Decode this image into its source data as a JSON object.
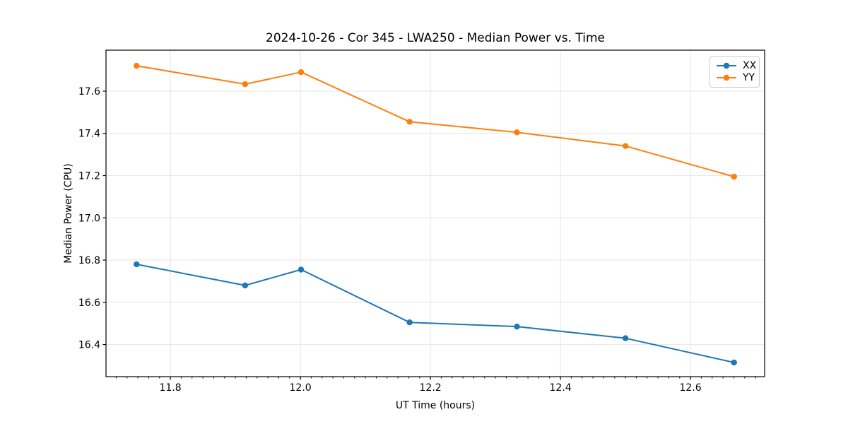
{
  "chart_data": {
    "type": "line",
    "title": "2024-10-26 - Cor 345 - LWA250 - Median Power vs. Time",
    "xlabel": "UT Time (hours)",
    "ylabel": "Median Power (CPU)",
    "xlim": [
      11.701,
      12.714
    ],
    "ylim": [
      16.248,
      17.794
    ],
    "grid": true,
    "legend_position": "upper right",
    "x": [
      11.748,
      11.915,
      12.001,
      12.168,
      12.333,
      12.5,
      12.667
    ],
    "series": [
      {
        "name": "XX",
        "color": "#1f77b4",
        "values": [
          16.78,
          16.68,
          16.755,
          16.505,
          16.485,
          16.43,
          16.315
        ]
      },
      {
        "name": "YY",
        "color": "#ff7f0e",
        "values": [
          17.72,
          17.633,
          17.69,
          17.455,
          17.405,
          17.34,
          17.195
        ]
      }
    ],
    "x_ticks": [
      {
        "value": 11.8,
        "label": "11.8"
      },
      {
        "value": 12.0,
        "label": "12.0"
      },
      {
        "value": 12.2,
        "label": "12.2"
      },
      {
        "value": 12.4,
        "label": "12.4"
      },
      {
        "value": 12.6,
        "label": "12.6"
      }
    ],
    "y_ticks": [
      {
        "value": 16.4,
        "label": "16.4"
      },
      {
        "value": 16.6,
        "label": "16.6"
      },
      {
        "value": 16.8,
        "label": "16.8"
      },
      {
        "value": 17.0,
        "label": "17.0"
      },
      {
        "value": 17.2,
        "label": "17.2"
      },
      {
        "value": 17.4,
        "label": "17.4"
      },
      {
        "value": 17.6,
        "label": "17.6"
      }
    ],
    "x_minor_ticks_per_hour": 60
  },
  "styles": {
    "grid_color": "#e6e6e6",
    "spine_color": "#000000",
    "tick_color": "#000000",
    "text_color": "#000000",
    "legend_border_color": "#cccccc",
    "background": "#ffffff"
  }
}
